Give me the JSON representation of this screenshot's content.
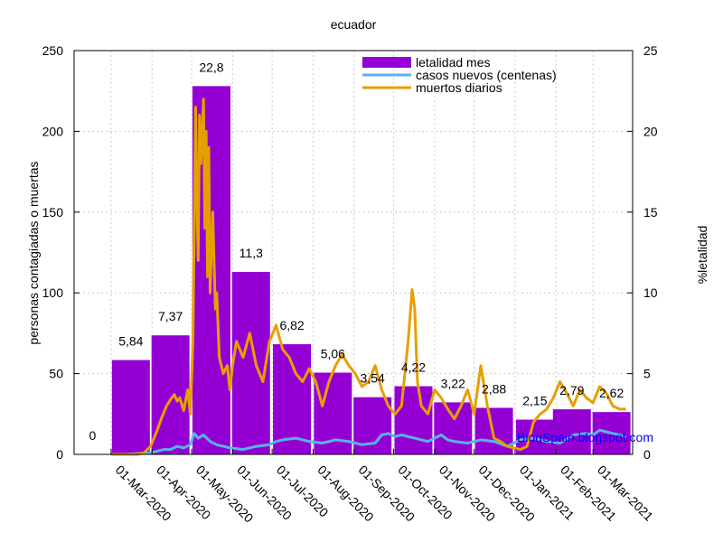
{
  "chart_data": {
    "type": "bar+line",
    "title": "ecuador",
    "ylabel": "personas contagiadas o muertas",
    "y2label": "%letalidad",
    "ylim": [
      0,
      250
    ],
    "y2lim": [
      0,
      25
    ],
    "yticks": [
      "0",
      "50",
      "100",
      "150",
      "200",
      "250"
    ],
    "y2ticks": [
      "0",
      "5",
      "10",
      "15",
      "20",
      "25"
    ],
    "grid": true,
    "legend_position": "top-right",
    "watermark": "BlogSpain.blogspot.com",
    "colors": {
      "bars": "#9400D3",
      "casos": "#56B4E9",
      "muertos": "#E69F00",
      "watermark": "#0000FF",
      "grid": "#cccccc"
    },
    "x_ticks": [
      "01-Mar-2020",
      "01-Apr-2020",
      "01-May-2020",
      "01-Jun-2020",
      "01-Jul-2020",
      "01-Aug-2020",
      "01-Sep-2020",
      "01-Oct-2020",
      "01-Nov-2020",
      "01-Dec-2020",
      "01-Jan-2021",
      "01-Feb-2021",
      "01-Mar-2021"
    ],
    "x_range_days": [
      0,
      395
    ],
    "bars": {
      "name": "letalidad mes",
      "months": [
        "Feb-2020",
        "Mar-2020",
        "Apr-2020",
        "May-2020",
        "Jun-2020",
        "Jul-2020",
        "Aug-2020",
        "Sep-2020",
        "Oct-2020",
        "Nov-2020",
        "Dec-2020",
        "Jan-2021",
        "Feb-2021",
        "Mar-2021"
      ],
      "center_day": [
        -14,
        15,
        45,
        76,
        106,
        137,
        168,
        198,
        229,
        259,
        290,
        321,
        349,
        379
      ],
      "values": [
        0,
        5.84,
        7.37,
        22.8,
        11.3,
        6.82,
        5.06,
        3.54,
        4.22,
        3.22,
        2.88,
        2.15,
        2.79,
        2.62
      ],
      "labels": [
        "0",
        "5,84",
        "7,37",
        "22,8",
        "11,3",
        "6,82",
        "5,06",
        "3,54",
        "4,22",
        "3,22",
        "2,88",
        "2,15",
        "2,79",
        "2,62"
      ]
    },
    "series": [
      {
        "name": "casos nuevos (centenas)",
        "x": [
          0,
          10,
          20,
          30,
          35,
          40,
          45,
          50,
          55,
          60,
          63,
          66,
          70,
          75,
          80,
          90,
          100,
          110,
          120,
          125,
          130,
          140,
          150,
          160,
          170,
          180,
          190,
          200,
          205,
          210,
          215,
          220,
          230,
          240,
          250,
          255,
          260,
          270,
          280,
          290,
          300,
          305,
          310,
          320,
          330,
          340,
          350,
          360,
          365,
          370,
          375,
          380,
          385,
          390
        ],
        "values": [
          0,
          0,
          0.5,
          1,
          2,
          3,
          3,
          5,
          4,
          6,
          13,
          10,
          12,
          8,
          6,
          4,
          3,
          5,
          6,
          8,
          9,
          10,
          8,
          7,
          9,
          8,
          6,
          7,
          12,
          13,
          11,
          12,
          10,
          8,
          12,
          9,
          8,
          7,
          9,
          8,
          5,
          7,
          9,
          10,
          8,
          7,
          12,
          13,
          12,
          15,
          14,
          13,
          12,
          11
        ]
      },
      {
        "name": "muertos diarios",
        "x": [
          0,
          10,
          20,
          25,
          30,
          35,
          38,
          42,
          45,
          48,
          50,
          52,
          55,
          58,
          60,
          62,
          64,
          65,
          66,
          67,
          68,
          70,
          71,
          72,
          73,
          74,
          75,
          77,
          79,
          80,
          82,
          85,
          88,
          90,
          92,
          95,
          100,
          105,
          110,
          115,
          120,
          125,
          130,
          135,
          140,
          145,
          150,
          155,
          160,
          165,
          170,
          175,
          180,
          185,
          190,
          195,
          200,
          205,
          210,
          215,
          220,
          225,
          228,
          230,
          232,
          235,
          240,
          245,
          250,
          255,
          260,
          265,
          270,
          275,
          280,
          285,
          290,
          295,
          300,
          305,
          310,
          315,
          320,
          325,
          330,
          335,
          340,
          345,
          350,
          355,
          360,
          365,
          370,
          375,
          380,
          385,
          390
        ],
        "values": [
          0,
          0,
          0,
          1,
          5,
          15,
          22,
          30,
          34,
          37,
          33,
          35,
          27,
          40,
          25,
          70,
          215,
          160,
          120,
          210,
          180,
          220,
          140,
          200,
          110,
          190,
          100,
          150,
          90,
          100,
          60,
          50,
          55,
          40,
          55,
          70,
          60,
          75,
          55,
          45,
          70,
          80,
          65,
          60,
          50,
          45,
          53,
          45,
          30,
          45,
          55,
          62,
          55,
          50,
          42,
          45,
          55,
          40,
          30,
          25,
          30,
          70,
          102,
          90,
          45,
          30,
          25,
          40,
          35,
          28,
          22,
          30,
          40,
          25,
          55,
          30,
          10,
          8,
          5,
          4,
          3,
          5,
          20,
          25,
          28,
          35,
          45,
          38,
          30,
          40,
          35,
          32,
          42,
          38,
          30,
          28,
          28
        ]
      }
    ]
  }
}
